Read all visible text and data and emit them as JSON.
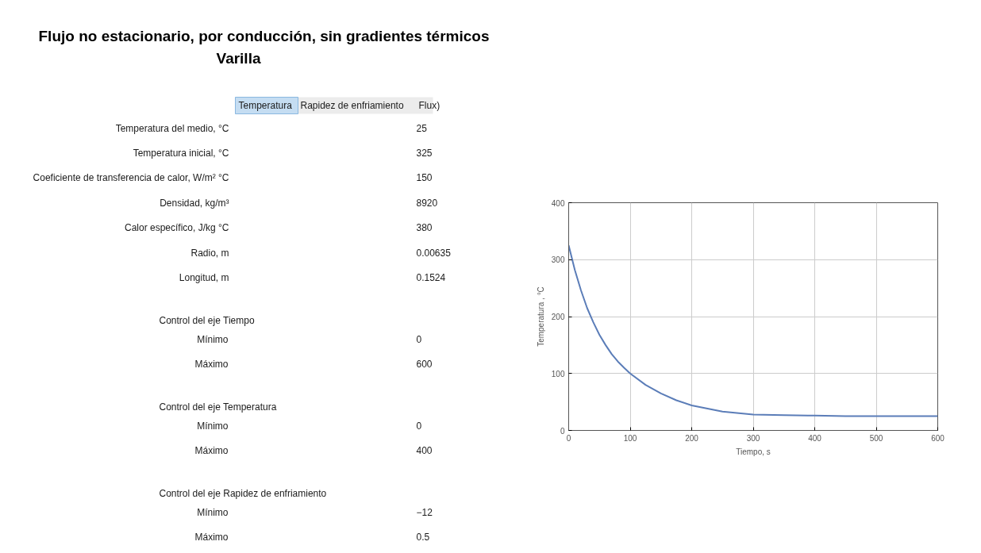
{
  "chart_data": [
    {
      "type": "other",
      "title": "Flujo no estacionario, por conducción, sin gradientes térmicos",
      "subtitle": "Varilla",
      "annotations": [
        "Temperatura",
        "Rapidez de enfriamiento",
        "Flux)",
        "Temperatura del medio, °C",
        "25",
        "Temperatura inicial, °C",
        "325",
        "Coeficiente de transferencia de calor, W/m² °C",
        "150",
        "Densidad, kg/m³",
        "8920",
        "Calor específico, J/kg °C",
        "380",
        "Radio, m",
        "0.00635",
        "Longitud, m",
        "0.1524",
        "Control del eje Tiempo",
        "Mínimo",
        "0",
        "Máximo",
        "600",
        "Control del eje Temperatura",
        "Mínimo",
        "0",
        "Máximo",
        "400",
        "Control del eje Rapidez de enfriamiento",
        "Mínimo",
        "−12",
        "Máximo",
        "0.5"
      ]
    },
    {
      "type": "line",
      "xlabel": "Tiempo, s",
      "ylabel": "Temperatura , °C",
      "x": [
        0,
        10,
        20,
        30,
        40,
        50,
        60,
        70,
        80,
        90,
        100,
        125,
        150,
        175,
        200,
        250,
        300,
        350,
        400,
        450,
        500,
        600
      ],
      "series": [
        {
          "color": "#5b7db8",
          "values": [
            325,
            282,
            246,
            215,
            190,
            168,
            150,
            134,
            121,
            110,
            100,
            80,
            65,
            53,
            44,
            33,
            28,
            27,
            26,
            25,
            25,
            25
          ]
        }
      ],
      "xlim": [
        0,
        600
      ],
      "ylim": [
        0,
        400
      ],
      "xticks": [
        0,
        100,
        200,
        300,
        400,
        500,
        600
      ],
      "yticks": [
        0,
        100,
        200,
        300,
        400
      ],
      "grid": true,
      "marker": "none",
      "line_style": "solid"
    }
  ]
}
